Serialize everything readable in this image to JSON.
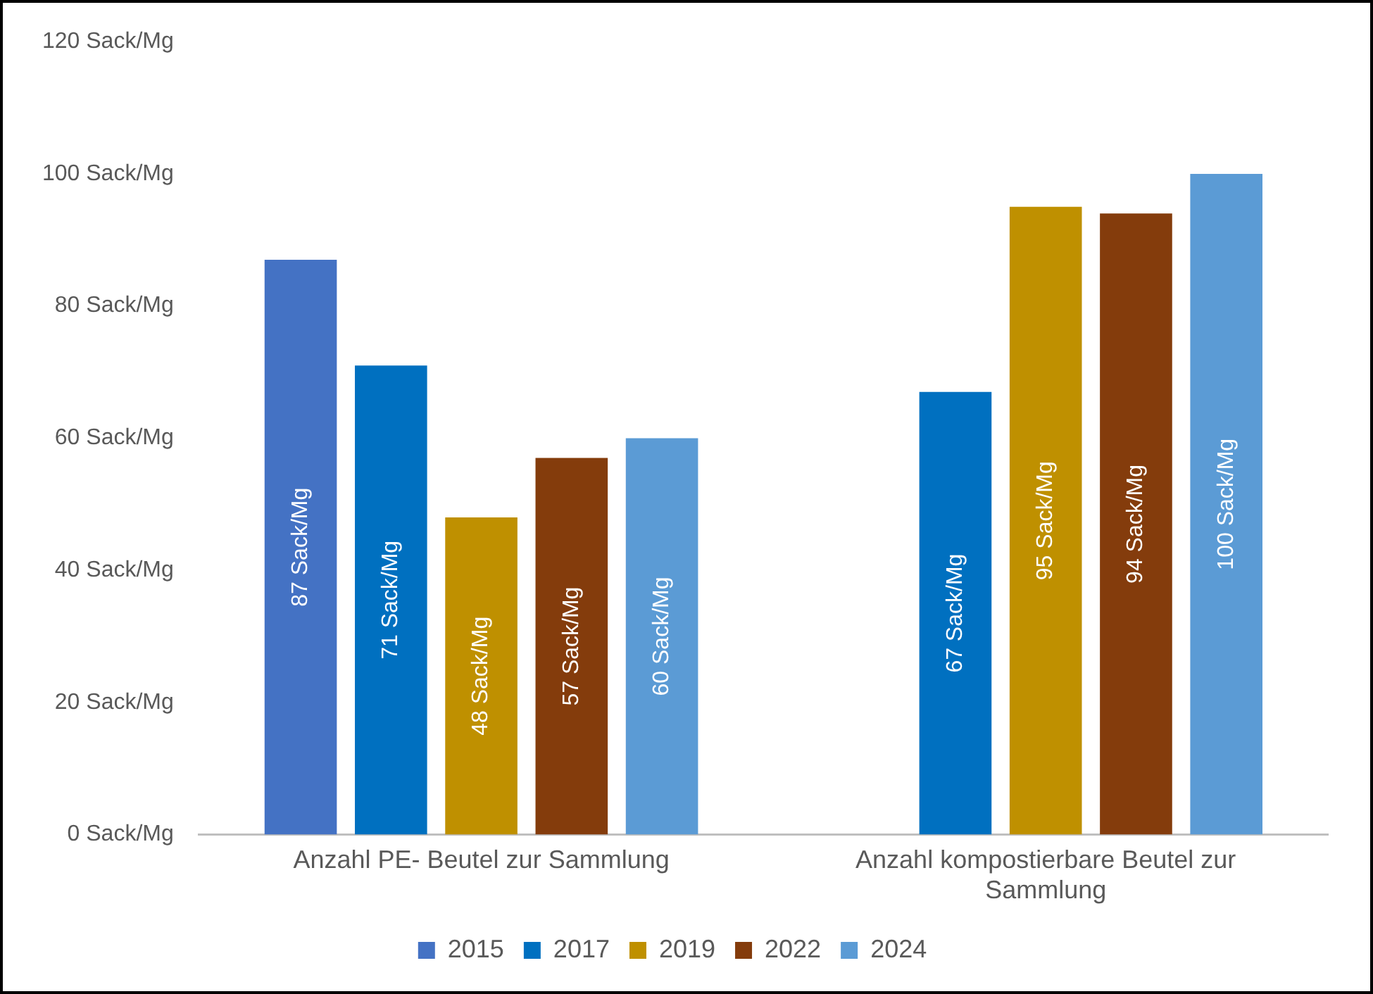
{
  "chart_data": {
    "type": "bar",
    "categories": [
      "Anzahl PE- Beutel zur Sammlung",
      "Anzahl kompostierbare Beutel zur Sammlung"
    ],
    "series": [
      {
        "name": "2015",
        "color": "#4472c4",
        "values": [
          87,
          null
        ],
        "value_labels": [
          "87 Sack/Mg",
          null
        ]
      },
      {
        "name": "2017",
        "color": "#0070c0",
        "values": [
          71,
          67
        ],
        "value_labels": [
          "71 Sack/Mg",
          "67 Sack/Mg"
        ]
      },
      {
        "name": "2019",
        "color": "#bf9000",
        "values": [
          48,
          95
        ],
        "value_labels": [
          "48 Sack/Mg",
          "95 Sack/Mg"
        ]
      },
      {
        "name": "2022",
        "color": "#843c0c",
        "values": [
          57,
          94
        ],
        "value_labels": [
          "57 Sack/Mg",
          "94 Sack/Mg"
        ]
      },
      {
        "name": "2024",
        "color": "#5b9bd5",
        "values": [
          60,
          100
        ],
        "value_labels": [
          "60 Sack/Mg",
          "100 Sack/Mg"
        ]
      }
    ],
    "ylim": [
      0,
      120
    ],
    "yticks": [
      {
        "value": 0,
        "label": "0 Sack/Mg"
      },
      {
        "value": 20,
        "label": "20 Sack/Mg"
      },
      {
        "value": 40,
        "label": "40 Sack/Mg"
      },
      {
        "value": 60,
        "label": "60 Sack/Mg"
      },
      {
        "value": 80,
        "label": "80 Sack/Mg"
      },
      {
        "value": 100,
        "label": "100 Sack/Mg"
      },
      {
        "value": 120,
        "label": "120 Sack/Mg"
      }
    ],
    "grid": false,
    "legend": "bottom"
  }
}
